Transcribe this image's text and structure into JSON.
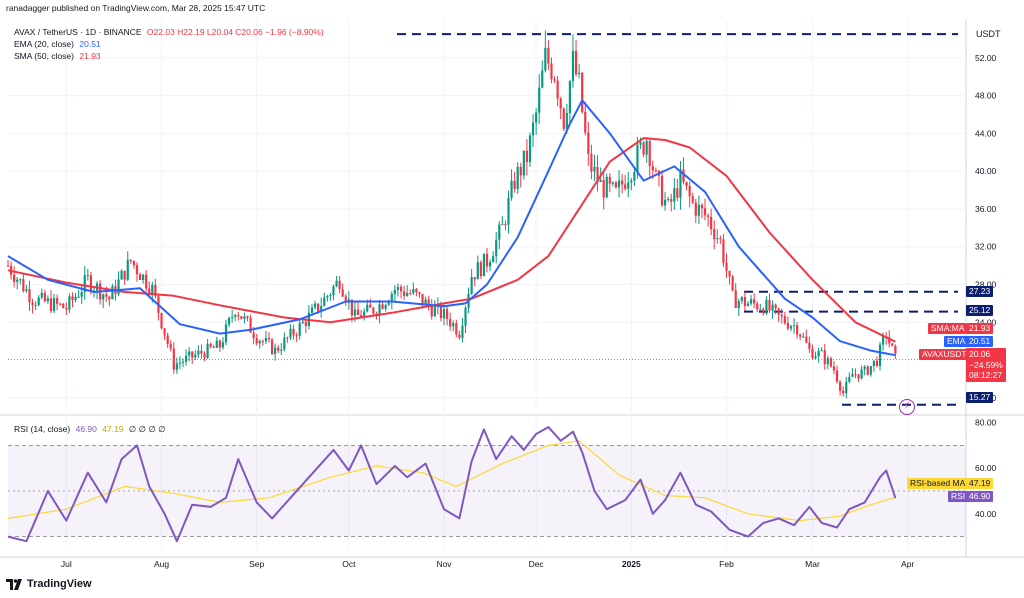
{
  "header": {
    "publisher": "ranadagger published on TradingView.com, Mar 28, 2025 15:47 UTC",
    "symbol": "AVAX / TetherUS · 1D · BINANCE",
    "ohlc": "O22.03 H22.19 L20.04 C20.06 −1.96 (−8.90%)",
    "ema_label": "EMA (20, close)",
    "ema_value": "20.51",
    "sma_label": "SMA (50, close)",
    "sma_value": "21.93",
    "rsi_label": "RSI (14, close)",
    "rsi_value": "46.90",
    "rsi_ma_value": "47.19",
    "rsi_extras": "∅ ∅ ∅ ∅"
  },
  "footer": {
    "brand": "TradingView"
  },
  "price_axis": {
    "currency": "USDT",
    "ticks": [
      "52.00",
      "48.00",
      "44.00",
      "40.00",
      "36.00",
      "32.00",
      "28.00",
      "24.00",
      "16.00"
    ]
  },
  "rsi_axis": {
    "ticks": [
      "80.00",
      "60.00",
      "40.00"
    ]
  },
  "time_axis": {
    "labels": [
      "Jul",
      "Aug",
      "Sep",
      "Oct",
      "Nov",
      "Dec",
      "2025",
      "Feb",
      "Mar",
      "Apr"
    ]
  },
  "labels": {
    "sma": {
      "name": "SMA:MA",
      "value": "21.93"
    },
    "ema": {
      "name": "EMA",
      "value": "20.51"
    },
    "pair": {
      "name": "AVAXUSDT",
      "value": "20.06",
      "change": "−24.59%",
      "countdown": "08:12:27"
    },
    "level_2723": "27.23",
    "level_2512": "25.12",
    "level_1527": "15.27",
    "rsi_ma": {
      "name": "RSI-based MA",
      "value": "47.19"
    },
    "rsi": {
      "name": "RSI",
      "value": "46.90"
    }
  },
  "colors": {
    "up": "#089981",
    "down": "#f23645",
    "ema": "#2962ff",
    "sma": "#f23645",
    "rsi": "#7e57c2",
    "rsi_ma": "#fdd835",
    "levels": "#0c1e6e",
    "pair_label": "#f23645"
  },
  "chart_data": [
    {
      "type": "candlestick",
      "title": "AVAX / TetherUS · 1D · BINANCE",
      "ylim": [
        14.5,
        56
      ],
      "x_range": [
        "2024-06-12",
        "2025-04-20"
      ],
      "grid": true,
      "series": [
        {
          "name": "SMA (50, close)",
          "points": [
            [
              "2024-06-12",
              29.5
            ],
            [
              "2024-07-01",
              28.2
            ],
            [
              "2024-07-20",
              27.2
            ],
            [
              "2024-08-05",
              26.8
            ],
            [
              "2024-08-20",
              25.8
            ],
            [
              "2024-09-10",
              24.5
            ],
            [
              "2024-09-25",
              24.0
            ],
            [
              "2024-10-15",
              25.0
            ],
            [
              "2024-11-01",
              26.0
            ],
            [
              "2024-11-10",
              26.5
            ],
            [
              "2024-11-25",
              28.5
            ],
            [
              "2024-12-05",
              31.0
            ],
            [
              "2024-12-15",
              36.0
            ],
            [
              "2024-12-25",
              41.0
            ],
            [
              "2025-01-05",
              43.5
            ],
            [
              "2025-01-12",
              43.3
            ],
            [
              "2025-01-20",
              42.5
            ],
            [
              "2025-02-01",
              39.5
            ],
            [
              "2025-02-15",
              33.5
            ],
            [
              "2025-03-01",
              28.5
            ],
            [
              "2025-03-15",
              24.0
            ],
            [
              "2025-03-28",
              21.93
            ]
          ]
        },
        {
          "name": "EMA (20, close)",
          "points": [
            [
              "2024-06-12",
              31.0
            ],
            [
              "2024-06-25",
              28.5
            ],
            [
              "2024-07-10",
              27.2
            ],
            [
              "2024-07-25",
              27.6
            ],
            [
              "2024-08-07",
              23.8
            ],
            [
              "2024-08-20",
              22.8
            ],
            [
              "2024-08-30",
              23.2
            ],
            [
              "2024-09-15",
              24.3
            ],
            [
              "2024-09-30",
              26.2
            ],
            [
              "2024-10-15",
              26.2
            ],
            [
              "2024-11-01",
              25.7
            ],
            [
              "2024-11-08",
              26.0
            ],
            [
              "2024-11-15",
              28.0
            ],
            [
              "2024-11-25",
              33.0
            ],
            [
              "2024-12-05",
              40.0
            ],
            [
              "2024-12-12",
              45.0
            ],
            [
              "2024-12-16",
              47.5
            ],
            [
              "2024-12-25",
              44.0
            ],
            [
              "2025-01-05",
              39.0
            ],
            [
              "2025-01-15",
              40.5
            ],
            [
              "2025-01-25",
              37.8
            ],
            [
              "2025-02-05",
              32.0
            ],
            [
              "2025-02-20",
              26.5
            ],
            [
              "2025-03-01",
              24.5
            ],
            [
              "2025-03-10",
              22.0
            ],
            [
              "2025-03-20",
              21.0
            ],
            [
              "2025-03-28",
              20.51
            ]
          ]
        },
        {
          "name": "AVAXUSDT close",
          "points": [
            [
              "2024-06-12",
              30.0
            ],
            [
              "2024-06-20",
              26.5
            ],
            [
              "2024-07-01",
              25.5
            ],
            [
              "2024-07-08",
              28.5
            ],
            [
              "2024-07-15",
              26.5
            ],
            [
              "2024-07-22",
              30.5
            ],
            [
              "2024-07-29",
              27.5
            ],
            [
              "2024-08-05",
              19.5
            ],
            [
              "2024-08-12",
              20.5
            ],
            [
              "2024-08-20",
              21.5
            ],
            [
              "2024-08-25",
              25.5
            ],
            [
              "2024-09-01",
              22.5
            ],
            [
              "2024-09-07",
              21.0
            ],
            [
              "2024-09-15",
              23.5
            ],
            [
              "2024-09-22",
              26.0
            ],
            [
              "2024-09-28",
              28.5
            ],
            [
              "2024-10-03",
              24.5
            ],
            [
              "2024-10-10",
              25.5
            ],
            [
              "2024-10-16",
              27.5
            ],
            [
              "2024-10-22",
              27.0
            ],
            [
              "2024-10-28",
              25.5
            ],
            [
              "2024-11-02",
              24.5
            ],
            [
              "2024-11-06",
              23.0
            ],
            [
              "2024-11-10",
              29.0
            ],
            [
              "2024-11-15",
              30.5
            ],
            [
              "2024-11-20",
              34.0
            ],
            [
              "2024-11-24",
              39.0
            ],
            [
              "2024-11-28",
              41.5
            ],
            [
              "2024-12-01",
              46.0
            ],
            [
              "2024-12-04",
              52.0
            ],
            [
              "2024-12-07",
              50.5
            ],
            [
              "2024-12-10",
              45.5
            ],
            [
              "2024-12-13",
              51.5
            ],
            [
              "2024-12-15",
              49.0
            ],
            [
              "2024-12-18",
              41.0
            ],
            [
              "2024-12-22",
              38.5
            ],
            [
              "2024-12-27",
              37.5
            ],
            [
              "2025-01-02",
              41.0
            ],
            [
              "2025-01-06",
              43.5
            ],
            [
              "2025-01-09",
              39.0
            ],
            [
              "2025-01-13",
              36.0
            ],
            [
              "2025-01-17",
              39.0
            ],
            [
              "2025-01-21",
              36.5
            ],
            [
              "2025-01-26",
              35.0
            ],
            [
              "2025-01-30",
              32.5
            ],
            [
              "2025-02-03",
              26.5
            ],
            [
              "2025-02-08",
              26.0
            ],
            [
              "2025-02-13",
              25.8
            ],
            [
              "2025-02-18",
              24.5
            ],
            [
              "2025-02-24",
              23.5
            ],
            [
              "2025-02-28",
              21.0
            ],
            [
              "2025-03-04",
              20.5
            ],
            [
              "2025-03-08",
              19.0
            ],
            [
              "2025-03-11",
              16.5
            ],
            [
              "2025-03-14",
              18.5
            ],
            [
              "2025-03-18",
              18.7
            ],
            [
              "2025-03-22",
              20.0
            ],
            [
              "2025-03-25",
              22.8
            ],
            [
              "2025-03-28",
              20.06
            ]
          ]
        }
      ],
      "horizontal_levels": [
        54.5,
        27.23,
        25.12,
        15.27
      ]
    },
    {
      "type": "line",
      "title": "RSI (14, close)",
      "ylim": [
        25,
        82
      ],
      "bands": [
        70,
        30
      ],
      "series": [
        {
          "name": "RSI",
          "points": [
            [
              "2024-06-12",
              30
            ],
            [
              "2024-06-18",
              28
            ],
            [
              "2024-06-25",
              50
            ],
            [
              "2024-07-01",
              37
            ],
            [
              "2024-07-08",
              58
            ],
            [
              "2024-07-14",
              45
            ],
            [
              "2024-07-19",
              64
            ],
            [
              "2024-07-24",
              70
            ],
            [
              "2024-07-28",
              52
            ],
            [
              "2024-08-02",
              40
            ],
            [
              "2024-08-06",
              28
            ],
            [
              "2024-08-11",
              44
            ],
            [
              "2024-08-17",
              43
            ],
            [
              "2024-08-22",
              47
            ],
            [
              "2024-08-26",
              64
            ],
            [
              "2024-09-01",
              45
            ],
            [
              "2024-09-06",
              38
            ],
            [
              "2024-09-12",
              47
            ],
            [
              "2024-09-18",
              56
            ],
            [
              "2024-09-26",
              68
            ],
            [
              "2024-10-01",
              59
            ],
            [
              "2024-10-05",
              70
            ],
            [
              "2024-10-10",
              53
            ],
            [
              "2024-10-16",
              61
            ],
            [
              "2024-10-20",
              56
            ],
            [
              "2024-10-26",
              62
            ],
            [
              "2024-11-01",
              42
            ],
            [
              "2024-11-06",
              38
            ],
            [
              "2024-11-10",
              63
            ],
            [
              "2024-11-14",
              77
            ],
            [
              "2024-11-18",
              64
            ],
            [
              "2024-11-23",
              74
            ],
            [
              "2024-11-27",
              68
            ],
            [
              "2024-12-01",
              75
            ],
            [
              "2024-12-05",
              78
            ],
            [
              "2024-12-09",
              72
            ],
            [
              "2024-12-13",
              76
            ],
            [
              "2024-12-16",
              67
            ],
            [
              "2024-12-20",
              50
            ],
            [
              "2024-12-24",
              42
            ],
            [
              "2024-12-30",
              46
            ],
            [
              "2025-01-04",
              55
            ],
            [
              "2025-01-08",
              40
            ],
            [
              "2025-01-12",
              46
            ],
            [
              "2025-01-17",
              58
            ],
            [
              "2025-01-22",
              44
            ],
            [
              "2025-01-27",
              41
            ],
            [
              "2025-02-02",
              33
            ],
            [
              "2025-02-08",
              30
            ],
            [
              "2025-02-13",
              36
            ],
            [
              "2025-02-18",
              38
            ],
            [
              "2025-02-23",
              35
            ],
            [
              "2025-02-28",
              43
            ],
            [
              "2025-03-04",
              36
            ],
            [
              "2025-03-09",
              34
            ],
            [
              "2025-03-13",
              42
            ],
            [
              "2025-03-18",
              45
            ],
            [
              "2025-03-23",
              56
            ],
            [
              "2025-03-25",
              59
            ],
            [
              "2025-03-28",
              46.9
            ]
          ]
        },
        {
          "name": "RSI-based MA",
          "points": [
            [
              "2024-06-12",
              38
            ],
            [
              "2024-07-01",
              42
            ],
            [
              "2024-07-20",
              52
            ],
            [
              "2024-08-05",
              49
            ],
            [
              "2024-08-20",
              45
            ],
            [
              "2024-09-05",
              47
            ],
            [
              "2024-09-25",
              56
            ],
            [
              "2024-10-10",
              61
            ],
            [
              "2024-10-25",
              58
            ],
            [
              "2024-11-05",
              52
            ],
            [
              "2024-11-20",
              62
            ],
            [
              "2024-12-05",
              70
            ],
            [
              "2024-12-15",
              72
            ],
            [
              "2024-12-28",
              57
            ],
            [
              "2025-01-12",
              48
            ],
            [
              "2025-01-25",
              47
            ],
            [
              "2025-02-08",
              40
            ],
            [
              "2025-02-25",
              37
            ],
            [
              "2025-03-10",
              39
            ],
            [
              "2025-03-20",
              44
            ],
            [
              "2025-03-28",
              47.19
            ]
          ]
        }
      ]
    }
  ]
}
